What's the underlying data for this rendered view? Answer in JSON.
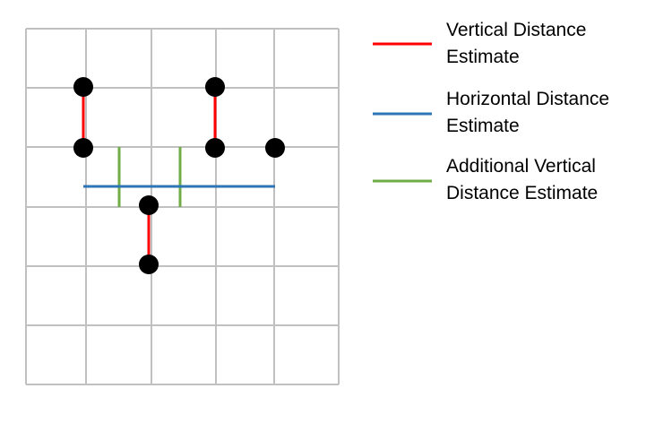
{
  "grid": {
    "columns": 5,
    "rows": 6,
    "line_color": "#C0C0C0"
  },
  "legend": [
    {
      "label": "Vertical Distance\nEstimate",
      "color": "#FF0000"
    },
    {
      "label": "Horizontal Distance\nEstimate",
      "color": "#2E75B6"
    },
    {
      "label": "Additional Vertical\nDistance Estimate",
      "color": "#70AD47"
    }
  ],
  "colors": {
    "point": "#000000",
    "vertical_estimate": "#FF0000",
    "horizontal_estimate": "#2E75B6",
    "additional_vertical_estimate": "#70AD47"
  }
}
